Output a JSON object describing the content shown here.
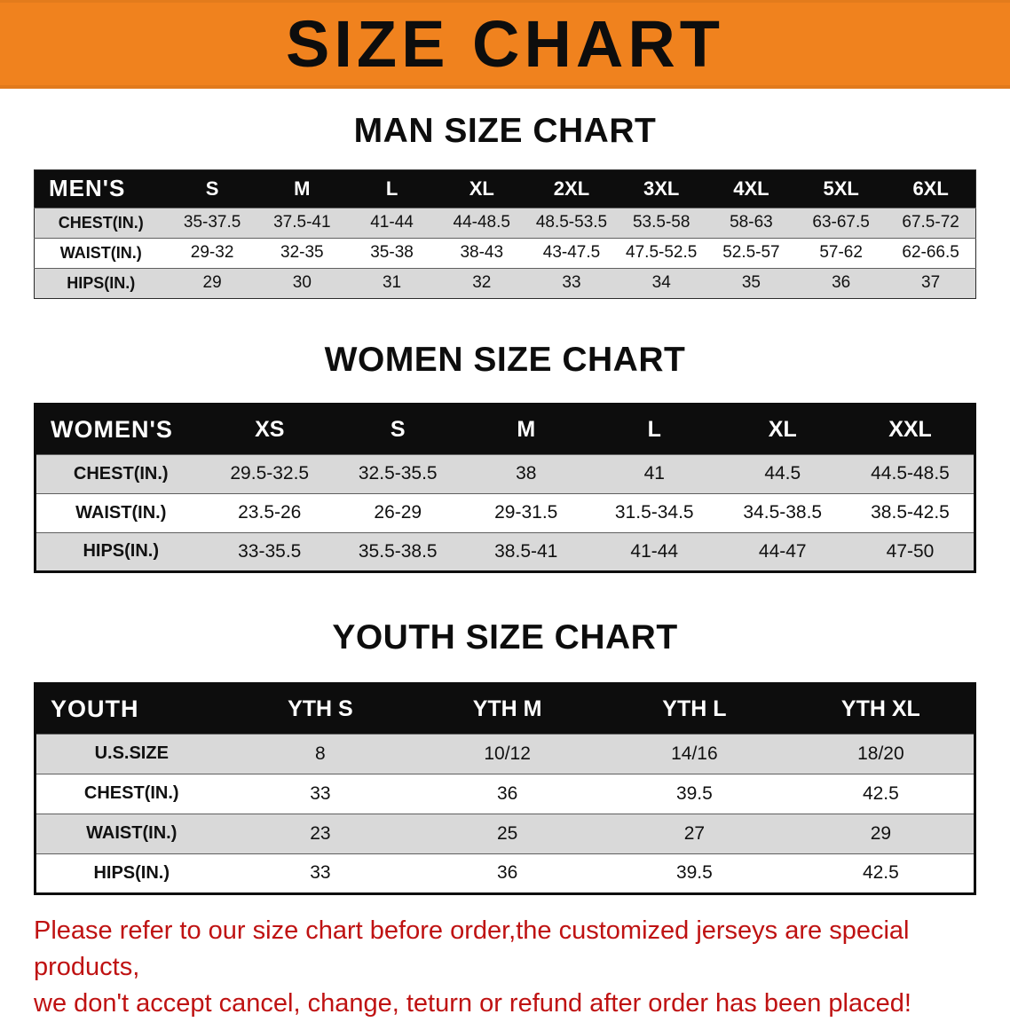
{
  "banner": {
    "title": "SIZE CHART",
    "bg_color": "#f0821e"
  },
  "sections": [
    {
      "heading": "MAN SIZE CHART",
      "table": {
        "header_label": "MEN'S",
        "columns": [
          "S",
          "M",
          "L",
          "XL",
          "2XL",
          "3XL",
          "4XL",
          "5XL",
          "6XL"
        ],
        "rows": [
          {
            "label": "CHEST(IN.)",
            "values": [
              "35-37.5",
              "37.5-41",
              "41-44",
              "44-48.5",
              "48.5-53.5",
              "53.5-58",
              "58-63",
              "63-67.5",
              "67.5-72"
            ]
          },
          {
            "label": "WAIST(IN.)",
            "values": [
              "29-32",
              "32-35",
              "35-38",
              "38-43",
              "43-47.5",
              "47.5-52.5",
              "52.5-57",
              "57-62",
              "62-66.5"
            ]
          },
          {
            "label": "HIPS(IN.)",
            "values": [
              "29",
              "30",
              "31",
              "32",
              "33",
              "34",
              "35",
              "36",
              "37"
            ]
          }
        ]
      }
    },
    {
      "heading": "WOMEN SIZE CHART",
      "table": {
        "header_label": "WOMEN'S",
        "columns": [
          "XS",
          "S",
          "M",
          "L",
          "XL",
          "XXL"
        ],
        "rows": [
          {
            "label": "CHEST(IN.)",
            "values": [
              "29.5-32.5",
              "32.5-35.5",
              "38",
              "41",
              "44.5",
              "44.5-48.5"
            ]
          },
          {
            "label": "WAIST(IN.)",
            "values": [
              "23.5-26",
              "26-29",
              "29-31.5",
              "31.5-34.5",
              "34.5-38.5",
              "38.5-42.5"
            ]
          },
          {
            "label": "HIPS(IN.)",
            "values": [
              "33-35.5",
              "35.5-38.5",
              "38.5-41",
              "41-44",
              "44-47",
              "47-50"
            ]
          }
        ]
      }
    },
    {
      "heading": "YOUTH SIZE CHART",
      "table": {
        "header_label": "YOUTH",
        "columns": [
          "YTH S",
          "YTH M",
          "YTH L",
          "YTH XL"
        ],
        "rows": [
          {
            "label": "U.S.SIZE",
            "values": [
              "8",
              "10/12",
              "14/16",
              "18/20"
            ]
          },
          {
            "label": "CHEST(IN.)",
            "values": [
              "33",
              "36",
              "39.5",
              "42.5"
            ]
          },
          {
            "label": "WAIST(IN.)",
            "values": [
              "23",
              "25",
              "27",
              "29"
            ]
          },
          {
            "label": "HIPS(IN.)",
            "values": [
              "33",
              "36",
              "39.5",
              "42.5"
            ]
          }
        ]
      }
    }
  ],
  "disclaimer": {
    "line1": "Please refer to our size chart before order,the customized jerseys are special products,",
    "line2": "we don't accept cancel, change, teturn or refund after order has been placed!",
    "color": "#bf1212"
  }
}
